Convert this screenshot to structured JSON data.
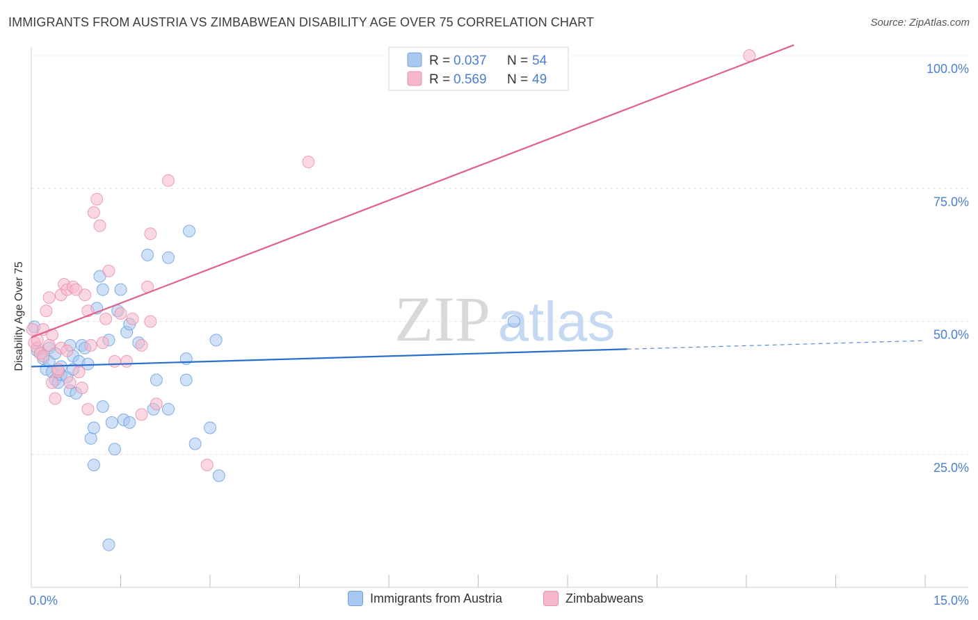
{
  "title": "IMMIGRANTS FROM AUSTRIA VS ZIMBABWEAN DISABILITY AGE OVER 75 CORRELATION CHART",
  "source": "Source: ZipAtlas.com",
  "watermark": {
    "zip": "ZIP",
    "atlas": "atlas"
  },
  "colors": {
    "blue_fill": "#a9c8f0",
    "blue_stroke": "#6fa0e0",
    "blue_line": "#2a6fcc",
    "pink_fill": "#f5b8cb",
    "pink_stroke": "#ea8fac",
    "pink_line": "#e0608c",
    "tick_label": "#4a7fd0",
    "grid": "#e4e4e4"
  },
  "legend_top": [
    {
      "r_label": "R = ",
      "r_value": "0.037",
      "n_label": "N = ",
      "n_value": "54",
      "series": "blue"
    },
    {
      "r_label": "R = ",
      "r_value": "0.569",
      "n_label": "N = ",
      "n_value": "49",
      "series": "pink"
    }
  ],
  "chart_data": {
    "type": "scatter",
    "xlabel": "",
    "ylabel": "Disability Age Over 75",
    "xlim": [
      0,
      15
    ],
    "ylim": [
      0,
      102
    ],
    "x_tick_labels": [
      {
        "value": 0,
        "label": "0.0%"
      },
      {
        "value": 15,
        "label": "15.0%"
      }
    ],
    "y_tick_labels": [
      {
        "value": 25,
        "label": "25.0%"
      },
      {
        "value": 50,
        "label": "50.0%"
      },
      {
        "value": 75,
        "label": "75.0%"
      },
      {
        "value": 100,
        "label": "100.0%"
      }
    ],
    "series": [
      {
        "name": "Immigrants from Austria",
        "color": "blue",
        "trend": {
          "x0": 0,
          "y0": 41.5,
          "x1": 10.0,
          "y1": 44.8,
          "dash_to_x": 15.0,
          "dash_to_y": 46.4
        },
        "points": [
          [
            0.05,
            49
          ],
          [
            0.1,
            44.5
          ],
          [
            0.15,
            44
          ],
          [
            0.2,
            43
          ],
          [
            0.25,
            41
          ],
          [
            0.3,
            45
          ],
          [
            0.3,
            42.5
          ],
          [
            0.35,
            40.5
          ],
          [
            0.4,
            39
          ],
          [
            0.4,
            44
          ],
          [
            0.45,
            38.5
          ],
          [
            0.5,
            41.5
          ],
          [
            0.5,
            40
          ],
          [
            0.6,
            39.5
          ],
          [
            0.65,
            37
          ],
          [
            0.65,
            45.5
          ],
          [
            0.7,
            43.5
          ],
          [
            0.75,
            36.5
          ],
          [
            0.8,
            42.5
          ],
          [
            0.85,
            45.5
          ],
          [
            0.9,
            45
          ],
          [
            0.95,
            42
          ],
          [
            1.0,
            28
          ],
          [
            1.05,
            30
          ],
          [
            1.05,
            23
          ],
          [
            1.1,
            52.5
          ],
          [
            1.15,
            58.5
          ],
          [
            1.2,
            56
          ],
          [
            1.2,
            34
          ],
          [
            1.3,
            46.5
          ],
          [
            1.35,
            31
          ],
          [
            1.4,
            26
          ],
          [
            1.45,
            52
          ],
          [
            1.5,
            56
          ],
          [
            1.55,
            31.5
          ],
          [
            1.6,
            48
          ],
          [
            1.65,
            49.5
          ],
          [
            1.65,
            31
          ],
          [
            1.8,
            46
          ],
          [
            1.95,
            62.5
          ],
          [
            2.05,
            33.5
          ],
          [
            2.1,
            39
          ],
          [
            2.3,
            33.5
          ],
          [
            2.3,
            62
          ],
          [
            2.6,
            43
          ],
          [
            2.6,
            39
          ],
          [
            2.65,
            67
          ],
          [
            2.75,
            27
          ],
          [
            3.0,
            30
          ],
          [
            3.1,
            46.5
          ],
          [
            3.15,
            21
          ],
          [
            1.3,
            8
          ],
          [
            8.1,
            50
          ],
          [
            0.7,
            41
          ]
        ]
      },
      {
        "name": "Zimbabweans",
        "color": "pink",
        "trend": {
          "x0": 0,
          "y0": 47.0,
          "x1": 12.8,
          "y1": 102
        },
        "points": [
          [
            0.02,
            48.5
          ],
          [
            0.05,
            46
          ],
          [
            0.1,
            45
          ],
          [
            0.15,
            44
          ],
          [
            0.2,
            48.5
          ],
          [
            0.2,
            43.5
          ],
          [
            0.25,
            52
          ],
          [
            0.3,
            54.5
          ],
          [
            0.35,
            47.5
          ],
          [
            0.35,
            38.5
          ],
          [
            0.4,
            35.5
          ],
          [
            0.45,
            40.5
          ],
          [
            0.5,
            55
          ],
          [
            0.5,
            45
          ],
          [
            0.55,
            57
          ],
          [
            0.6,
            56
          ],
          [
            0.6,
            44.5
          ],
          [
            0.65,
            38.5
          ],
          [
            0.7,
            56.5
          ],
          [
            0.75,
            56
          ],
          [
            0.8,
            40.5
          ],
          [
            0.85,
            37.5
          ],
          [
            0.9,
            55
          ],
          [
            0.95,
            52
          ],
          [
            0.95,
            33.5
          ],
          [
            1.0,
            45.5
          ],
          [
            1.05,
            70.5
          ],
          [
            1.1,
            73
          ],
          [
            1.15,
            68
          ],
          [
            1.2,
            46
          ],
          [
            1.25,
            50.5
          ],
          [
            1.3,
            59.5
          ],
          [
            1.4,
            42.5
          ],
          [
            1.5,
            51.5
          ],
          [
            1.6,
            42.5
          ],
          [
            1.7,
            50.5
          ],
          [
            1.85,
            32.5
          ],
          [
            1.85,
            45.5
          ],
          [
            1.95,
            56.5
          ],
          [
            2.0,
            66.5
          ],
          [
            2.0,
            50
          ],
          [
            2.1,
            34.5
          ],
          [
            2.3,
            76.5
          ],
          [
            2.95,
            23
          ],
          [
            4.65,
            80
          ],
          [
            12.05,
            100
          ],
          [
            0.1,
            46.5
          ],
          [
            0.3,
            45.5
          ],
          [
            0.45,
            41
          ]
        ]
      }
    ]
  }
}
